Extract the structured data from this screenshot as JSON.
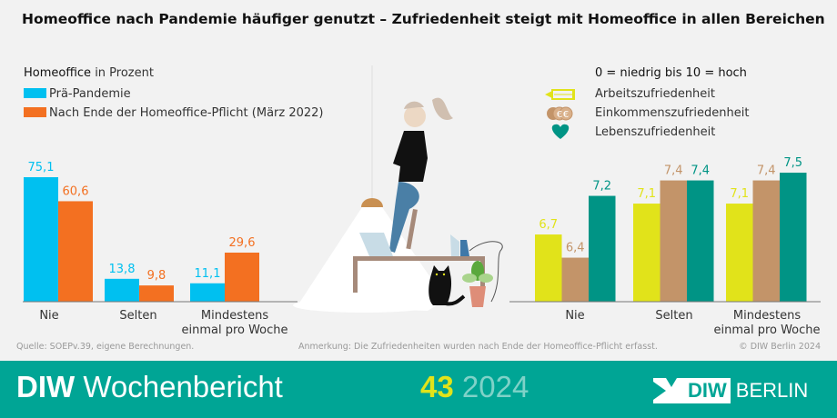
{
  "title": "Homeoffice nach Pandemie häufiger genutzt – Zufriedenheit steigt mit Homeoffice in allen Bereichen",
  "chart_data": [
    {
      "type": "bar",
      "title_bold": "Homeoffice",
      "title_rest": " in Prozent",
      "categories": [
        "Nie",
        "Selten",
        "Mindestens einmal pro Woche"
      ],
      "series": [
        {
          "name": "Prä-Pandemie",
          "color": "#00c0f0",
          "values": [
            75.1,
            13.8,
            11.1
          ],
          "labels": [
            "75,1",
            "13,8",
            "11,1"
          ]
        },
        {
          "name": "Nach Ende der Homeoffice-Pflicht (März 2022)",
          "color": "#f37021",
          "values": [
            60.6,
            9.8,
            29.6
          ],
          "labels": [
            "60,6",
            "9,8",
            "29,6"
          ]
        }
      ],
      "ylim": [
        0,
        80
      ]
    },
    {
      "type": "bar",
      "title": "0 = niedrig bis 10 = hoch",
      "categories": [
        "Nie",
        "Selten",
        "Mindestens einmal pro Woche"
      ],
      "series": [
        {
          "name": "Arbeitszufriedenheit",
          "icon": "pencil-icon",
          "color": "#e1e31a",
          "values": [
            6.7,
            7.1,
            7.1
          ],
          "labels": [
            "6,7",
            "7,1",
            "7,1"
          ]
        },
        {
          "name": "Einkommenszufriedenheit",
          "icon": "coins-icon",
          "color": "#c39469",
          "values": [
            6.4,
            7.4,
            7.4
          ],
          "labels": [
            "6,4",
            "7,4",
            "7,4"
          ]
        },
        {
          "name": "Lebenszufriedenheit",
          "icon": "heart-icon",
          "color": "#009485",
          "values": [
            7.2,
            7.4,
            7.5
          ],
          "labels": [
            "7,2",
            "7,4",
            "7,5"
          ]
        }
      ],
      "ylim": [
        5.83,
        7.6
      ]
    }
  ],
  "footer": {
    "source": "Quelle: SOEPv.39, eigene Berechnungen.",
    "note": "Anmerkung: Die Zufriedenheiten wurden nach Ende der Homeoffice-Pflicht erfasst.",
    "copyright": "© DIW Berlin 2024"
  },
  "banner": {
    "brand_bold": "DIW",
    "brand_rest": "Wochenbericht",
    "issue": "43",
    "year": "2024",
    "logo_text": "DIW",
    "logo_city": "BERLIN"
  }
}
